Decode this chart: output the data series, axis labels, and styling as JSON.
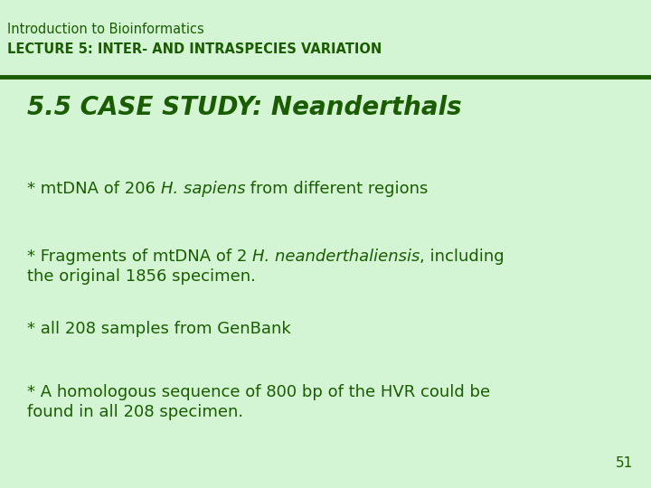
{
  "bg_color": "#d4f5d4",
  "header_line_color": "#1a5c00",
  "text_color": "#1a5c00",
  "header_line1": "Introduction to Bioinformatics",
  "header_line2": "LECTURE 5: INTER- AND INTRASPECIES VARIATION",
  "title": "5.5 CASE STUDY: Neanderthals",
  "bullet1_plain": "* mtDNA of 206 ",
  "bullet1_italic": "H. sapiens",
  "bullet1_rest": " from different regions",
  "bullet2_plain": "* Fragments of mtDNA of 2 ",
  "bullet2_italic": "H. neanderthaliensis",
  "bullet2_rest": ", including",
  "bullet2_line2": "the original 1856 specimen.",
  "bullet3": "* all 208 samples from GenBank",
  "bullet4_line1": "* A homologous sequence of 800 bp of the HVR could be",
  "bullet4_line2": "found in all 208 specimen.",
  "page_number": "51",
  "header1_fontsize": 10.5,
  "header2_fontsize": 10.5,
  "title_fontsize": 20,
  "body_fontsize": 13,
  "page_fontsize": 11
}
